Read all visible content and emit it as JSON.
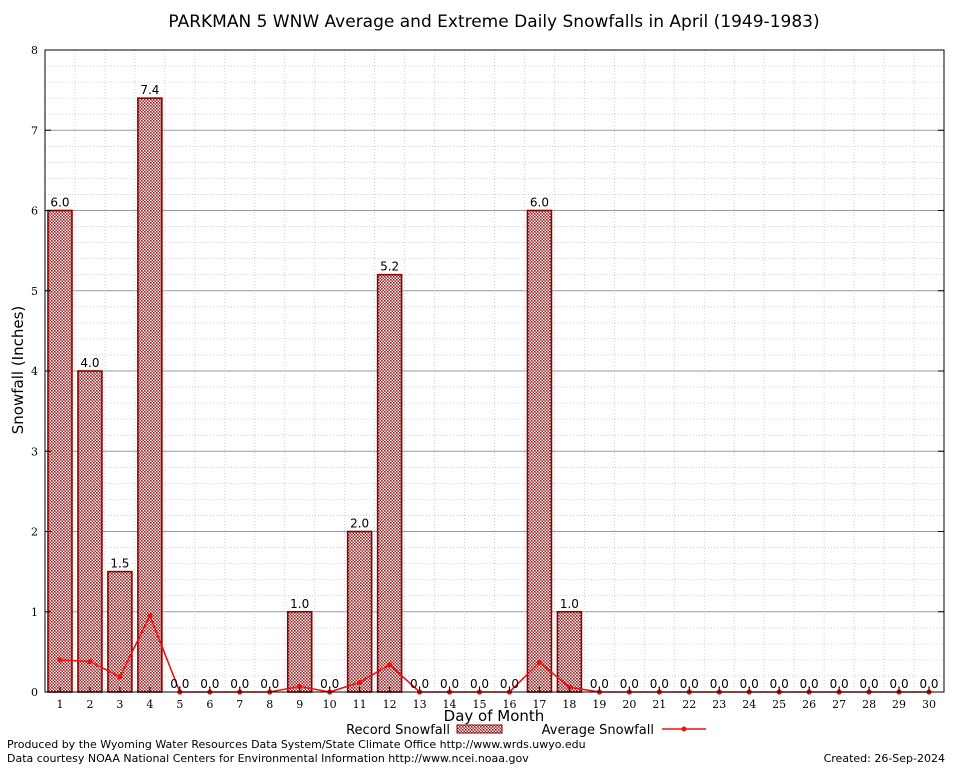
{
  "chart_data": {
    "type": "bar",
    "title": "PARKMAN 5 WNW Average and Extreme Daily Snowfalls in April (1949-1983)",
    "xlabel": "Day of Month",
    "ylabel": "Snowfall (Inches)",
    "ylim": [
      0,
      8
    ],
    "yticks": [
      "0",
      "1",
      "2",
      "3",
      "4",
      "5",
      "6",
      "7",
      "8"
    ],
    "categories": [
      "1",
      "2",
      "3",
      "4",
      "5",
      "6",
      "7",
      "8",
      "9",
      "10",
      "11",
      "12",
      "13",
      "14",
      "15",
      "16",
      "17",
      "18",
      "19",
      "20",
      "21",
      "22",
      "23",
      "24",
      "25",
      "26",
      "27",
      "28",
      "29",
      "30"
    ],
    "grid": true,
    "legend_position": "bottom",
    "series": [
      {
        "name": "Record Snowfall",
        "kind": "bar",
        "color": "#b22222",
        "values": [
          6.0,
          4.0,
          1.5,
          7.4,
          0.0,
          0.0,
          0.0,
          0.0,
          1.0,
          0.0,
          2.0,
          5.2,
          0.0,
          0.0,
          0.0,
          0.0,
          6.0,
          1.0,
          0.0,
          0.0,
          0.0,
          0.0,
          0.0,
          0.0,
          0.0,
          0.0,
          0.0,
          0.0,
          0.0,
          0.0
        ],
        "labels": [
          "6.0",
          "4.0",
          "1.5",
          "7.4",
          "0.0",
          "0.0",
          "0.0",
          "0.0",
          "1.0",
          "0.0",
          "2.0",
          "5.2",
          "0.0",
          "0.0",
          "0.0",
          "0.0",
          "6.0",
          "1.0",
          "0.0",
          "0.0",
          "0.0",
          "0.0",
          "0.0",
          "0.0",
          "0.0",
          "0.0",
          "0.0",
          "0.0",
          "0.0",
          "0.0"
        ]
      },
      {
        "name": "Average Snowfall",
        "kind": "line",
        "color": "#ee1111",
        "values": [
          0.4,
          0.38,
          0.19,
          0.95,
          0.0,
          0.0,
          0.0,
          0.0,
          0.07,
          0.0,
          0.12,
          0.34,
          0.0,
          0.0,
          0.0,
          0.0,
          0.37,
          0.06,
          0.0,
          0.0,
          0.0,
          0.0,
          0.0,
          0.0,
          0.0,
          0.0,
          0.0,
          0.0,
          0.0,
          0.0
        ]
      }
    ]
  },
  "footer": {
    "produced_by": "Produced by the Wyoming Water Resources Data System/State Climate Office http://www.wrds.uwyo.edu",
    "courtesy": "Data courtesy NOAA National Centers for Environmental Information http://www.ncei.noaa.gov",
    "created": "Created:  26-Sep-2024"
  }
}
